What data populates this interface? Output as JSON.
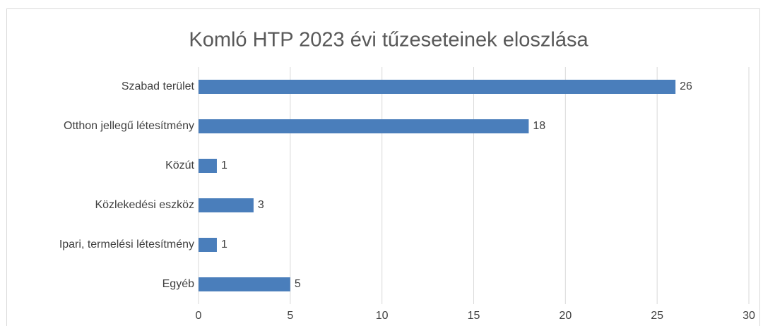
{
  "chart_data": {
    "type": "bar",
    "orientation": "horizontal",
    "title": "Komló HTP 2023 évi tűzeseteinek eloszlása",
    "categories": [
      "Szabad terület",
      "Otthon jellegű létesítmény",
      "Közút",
      "Közlekedési eszköz",
      "Ipari, termelési létesítmény",
      "Egyéb"
    ],
    "values": [
      26,
      18,
      1,
      3,
      1,
      5
    ],
    "color": "#4a7ebb",
    "xlim": [
      0,
      30
    ],
    "xticks": [
      0,
      5,
      10,
      15,
      20,
      25,
      30
    ],
    "grid": true,
    "data_labels": true
  }
}
